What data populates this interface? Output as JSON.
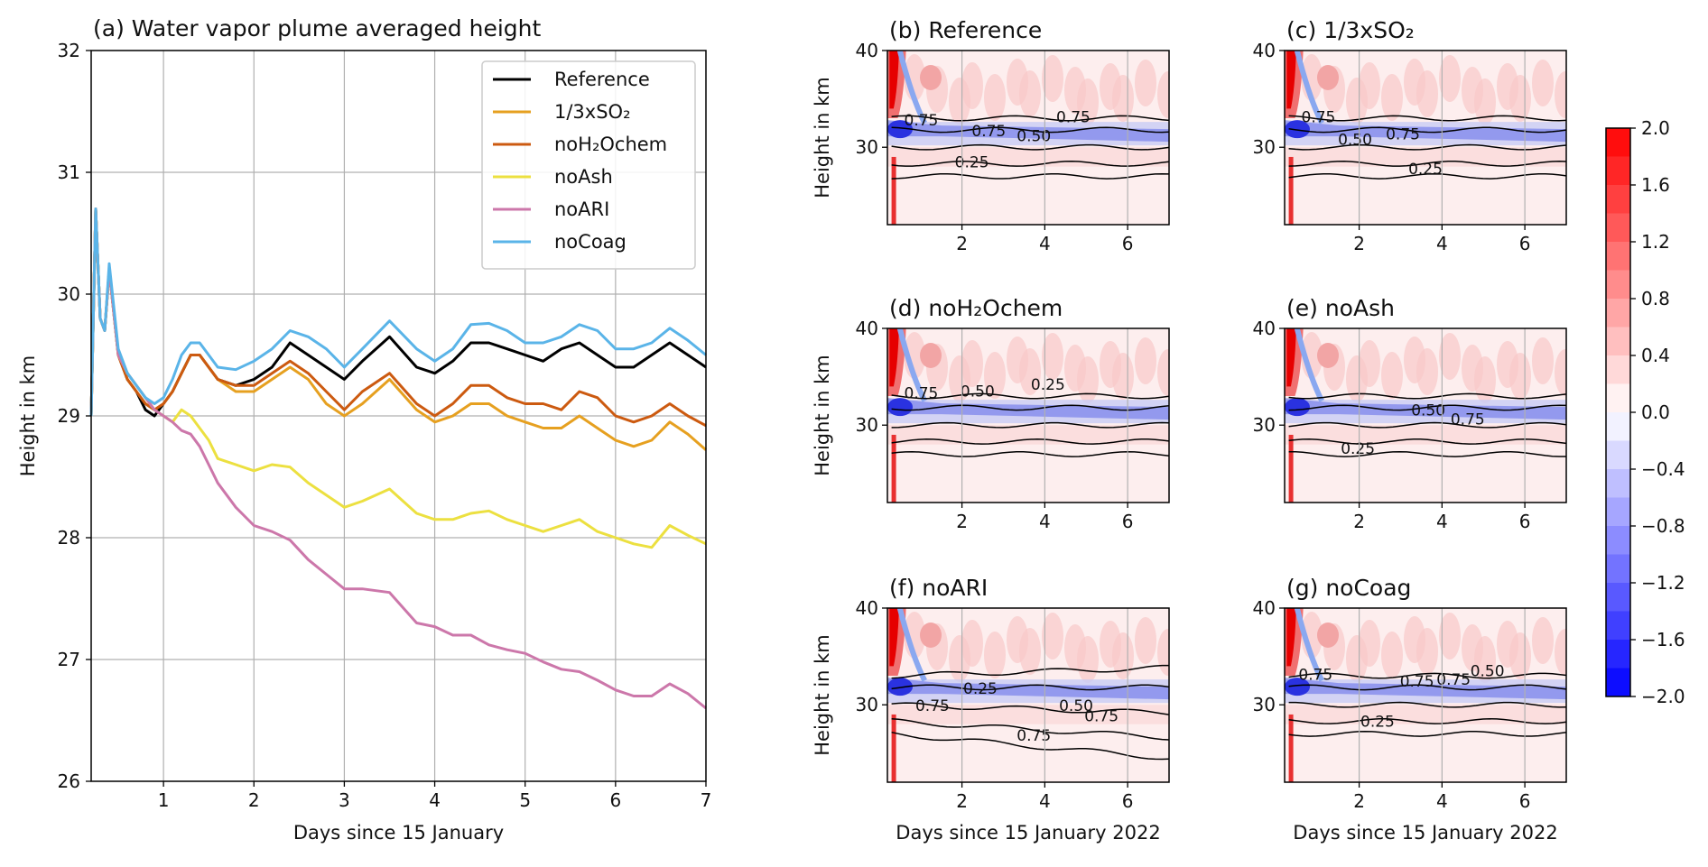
{
  "chart_data": [
    {
      "panel": "a",
      "type": "line",
      "title": "(a) Water vapor plume averaged height",
      "xlabel": "Days since 15 January",
      "ylabel": "Height in km",
      "xlim": [
        0.2,
        7
      ],
      "ylim": [
        26,
        32
      ],
      "xticks": [
        1,
        2,
        3,
        4,
        5,
        6,
        7
      ],
      "yticks": [
        26,
        27,
        28,
        29,
        30,
        31,
        32
      ],
      "grid": true,
      "legend_position": "top-right",
      "series": [
        {
          "name": "Reference",
          "legend_label": "Reference",
          "color": "#000000",
          "x": [
            0.2,
            0.25,
            0.3,
            0.35,
            0.4,
            0.5,
            0.6,
            0.7,
            0.8,
            0.9,
            1.0,
            1.1,
            1.2,
            1.3,
            1.4,
            1.5,
            1.6,
            1.8,
            2.0,
            2.2,
            2.4,
            2.6,
            2.8,
            3.0,
            3.2,
            3.5,
            3.8,
            4.0,
            4.2,
            4.4,
            4.6,
            4.8,
            5.0,
            5.2,
            5.4,
            5.6,
            5.8,
            6.0,
            6.2,
            6.4,
            6.6,
            6.8,
            7.0
          ],
          "y": [
            29.0,
            30.7,
            29.8,
            29.7,
            30.2,
            29.5,
            29.3,
            29.2,
            29.05,
            29.0,
            29.1,
            29.2,
            29.35,
            29.5,
            29.5,
            29.4,
            29.3,
            29.25,
            29.3,
            29.4,
            29.6,
            29.5,
            29.4,
            29.3,
            29.45,
            29.65,
            29.4,
            29.35,
            29.45,
            29.6,
            29.6,
            29.55,
            29.5,
            29.45,
            29.55,
            29.6,
            29.5,
            29.4,
            29.4,
            29.5,
            29.6,
            29.5,
            29.4
          ]
        },
        {
          "name": "1/3xSO2",
          "legend_label": "1/3xSO₂",
          "color": "#e6a020",
          "x": [
            0.2,
            0.25,
            0.3,
            0.35,
            0.4,
            0.5,
            0.6,
            0.7,
            0.8,
            0.9,
            1.0,
            1.1,
            1.2,
            1.3,
            1.4,
            1.5,
            1.6,
            1.8,
            2.0,
            2.2,
            2.4,
            2.6,
            2.8,
            3.0,
            3.2,
            3.5,
            3.8,
            4.0,
            4.2,
            4.4,
            4.6,
            4.8,
            5.0,
            5.2,
            5.4,
            5.6,
            5.8,
            6.0,
            6.2,
            6.4,
            6.6,
            6.8,
            7.0
          ],
          "y": [
            29.0,
            30.7,
            29.8,
            29.7,
            30.2,
            29.5,
            29.3,
            29.2,
            29.1,
            29.05,
            29.1,
            29.2,
            29.35,
            29.5,
            29.5,
            29.4,
            29.3,
            29.2,
            29.2,
            29.3,
            29.4,
            29.3,
            29.1,
            29.0,
            29.1,
            29.3,
            29.05,
            28.95,
            29.0,
            29.1,
            29.1,
            29.0,
            28.95,
            28.9,
            28.9,
            29.0,
            28.9,
            28.8,
            28.75,
            28.8,
            28.95,
            28.85,
            28.72
          ]
        },
        {
          "name": "noH2Ochem",
          "legend_label": "noH₂Ochem",
          "color": "#cc5a10",
          "x": [
            0.2,
            0.25,
            0.3,
            0.35,
            0.4,
            0.5,
            0.6,
            0.7,
            0.8,
            0.9,
            1.0,
            1.1,
            1.2,
            1.3,
            1.4,
            1.5,
            1.6,
            1.8,
            2.0,
            2.2,
            2.4,
            2.6,
            2.8,
            3.0,
            3.2,
            3.5,
            3.8,
            4.0,
            4.2,
            4.4,
            4.6,
            4.8,
            5.0,
            5.2,
            5.4,
            5.6,
            5.8,
            6.0,
            6.2,
            6.4,
            6.6,
            6.8,
            7.0
          ],
          "y": [
            29.0,
            30.7,
            29.8,
            29.7,
            30.2,
            29.5,
            29.3,
            29.2,
            29.1,
            29.05,
            29.1,
            29.2,
            29.35,
            29.5,
            29.5,
            29.4,
            29.3,
            29.25,
            29.25,
            29.35,
            29.45,
            29.35,
            29.2,
            29.05,
            29.2,
            29.35,
            29.1,
            29.0,
            29.1,
            29.25,
            29.25,
            29.15,
            29.1,
            29.1,
            29.05,
            29.2,
            29.15,
            29.0,
            28.95,
            29.0,
            29.1,
            29.0,
            28.92
          ]
        },
        {
          "name": "noAsh",
          "legend_label": "noAsh",
          "color": "#ece040",
          "x": [
            0.2,
            0.25,
            0.3,
            0.35,
            0.4,
            0.5,
            0.6,
            0.7,
            0.8,
            0.9,
            1.0,
            1.1,
            1.2,
            1.3,
            1.4,
            1.5,
            1.6,
            1.8,
            2.0,
            2.2,
            2.4,
            2.6,
            2.8,
            3.0,
            3.2,
            3.5,
            3.8,
            4.0,
            4.2,
            4.4,
            4.6,
            4.8,
            5.0,
            5.2,
            5.4,
            5.6,
            5.8,
            6.0,
            6.2,
            6.4,
            6.6,
            6.8,
            7.0
          ],
          "y": [
            29.0,
            30.7,
            29.8,
            29.7,
            30.2,
            29.5,
            29.35,
            29.25,
            29.15,
            29.05,
            29.0,
            28.95,
            29.05,
            29.0,
            28.9,
            28.8,
            28.65,
            28.6,
            28.55,
            28.6,
            28.58,
            28.45,
            28.35,
            28.25,
            28.3,
            28.4,
            28.2,
            28.15,
            28.15,
            28.2,
            28.22,
            28.15,
            28.1,
            28.05,
            28.1,
            28.15,
            28.05,
            28.0,
            27.95,
            27.92,
            28.1,
            28.02,
            27.95
          ]
        },
        {
          "name": "noARI",
          "legend_label": "noARI",
          "color": "#cc77aa",
          "x": [
            0.2,
            0.25,
            0.3,
            0.35,
            0.4,
            0.5,
            0.6,
            0.7,
            0.8,
            0.9,
            1.0,
            1.1,
            1.2,
            1.3,
            1.4,
            1.5,
            1.6,
            1.8,
            2.0,
            2.2,
            2.4,
            2.6,
            2.8,
            3.0,
            3.2,
            3.5,
            3.8,
            4.0,
            4.2,
            4.4,
            4.6,
            4.8,
            5.0,
            5.2,
            5.4,
            5.6,
            5.8,
            6.0,
            6.2,
            6.4,
            6.6,
            6.8,
            7.0
          ],
          "y": [
            29.0,
            30.7,
            29.8,
            29.7,
            30.2,
            29.5,
            29.35,
            29.25,
            29.15,
            29.05,
            29.0,
            28.95,
            28.88,
            28.85,
            28.75,
            28.6,
            28.45,
            28.25,
            28.1,
            28.05,
            27.98,
            27.82,
            27.7,
            27.58,
            27.58,
            27.55,
            27.3,
            27.27,
            27.2,
            27.2,
            27.12,
            27.08,
            27.05,
            26.98,
            26.92,
            26.9,
            26.83,
            26.75,
            26.7,
            26.7,
            26.8,
            26.72,
            26.6
          ]
        },
        {
          "name": "noCoag",
          "legend_label": "noCoag",
          "color": "#5ab4e8",
          "x": [
            0.2,
            0.25,
            0.3,
            0.35,
            0.4,
            0.5,
            0.6,
            0.7,
            0.8,
            0.9,
            1.0,
            1.1,
            1.2,
            1.3,
            1.4,
            1.5,
            1.6,
            1.8,
            2.0,
            2.2,
            2.4,
            2.6,
            2.8,
            3.0,
            3.2,
            3.5,
            3.8,
            4.0,
            4.2,
            4.4,
            4.6,
            4.8,
            5.0,
            5.2,
            5.4,
            5.6,
            5.8,
            6.0,
            6.2,
            6.4,
            6.6,
            6.8,
            7.0
          ],
          "y": [
            29.0,
            30.7,
            29.8,
            29.7,
            30.25,
            29.55,
            29.35,
            29.25,
            29.15,
            29.1,
            29.15,
            29.3,
            29.5,
            29.6,
            29.6,
            29.5,
            29.4,
            29.38,
            29.45,
            29.55,
            29.7,
            29.65,
            29.55,
            29.4,
            29.55,
            29.78,
            29.55,
            29.45,
            29.55,
            29.75,
            29.76,
            29.7,
            29.6,
            29.6,
            29.65,
            29.75,
            29.7,
            29.55,
            29.55,
            29.6,
            29.72,
            29.62,
            29.5
          ]
        }
      ]
    },
    {
      "panel": "b",
      "type": "heatmap",
      "title": "(b) Reference",
      "xlabel": "",
      "ylabel": "Height in km",
      "xticks": [
        2,
        4,
        6
      ],
      "yticks": [
        30,
        40
      ],
      "xlim": [
        0.2,
        7
      ],
      "ylim": [
        22,
        40
      ],
      "contour_labels": [
        "0.75",
        "0.75",
        "0.75",
        "0.50",
        "0.25"
      ]
    },
    {
      "panel": "c",
      "type": "heatmap",
      "title": "(c) 1/3xSO2",
      "title_display": "(c) 1/3xSO₂",
      "xlabel": "",
      "ylabel": "",
      "xticks": [
        2,
        4,
        6
      ],
      "yticks": [
        30,
        40
      ],
      "xlim": [
        0.2,
        7
      ],
      "ylim": [
        22,
        40
      ],
      "contour_labels": [
        "0.75",
        "0.50",
        "0.75",
        "0.25"
      ]
    },
    {
      "panel": "d",
      "type": "heatmap",
      "title": "(d) noH2Ochem",
      "title_display": "(d) noH₂Ochem",
      "xlabel": "",
      "ylabel": "Height in km",
      "xticks": [
        2,
        4,
        6
      ],
      "yticks": [
        30,
        40
      ],
      "xlim": [
        0.2,
        7
      ],
      "ylim": [
        22,
        40
      ],
      "contour_labels": [
        "0.75",
        "0.50",
        "0.25"
      ]
    },
    {
      "panel": "e",
      "type": "heatmap",
      "title": "(e) noAsh",
      "xlabel": "",
      "ylabel": "",
      "xticks": [
        2,
        4,
        6
      ],
      "yticks": [
        30,
        40
      ],
      "xlim": [
        0.2,
        7
      ],
      "ylim": [
        22,
        40
      ],
      "contour_labels": [
        "0.50",
        "0.75",
        "0.25"
      ]
    },
    {
      "panel": "f",
      "type": "heatmap",
      "title": "(f) noARI",
      "xlabel": "Days since 15 January 2022",
      "ylabel": "Height in km",
      "xticks": [
        2,
        4,
        6
      ],
      "yticks": [
        30,
        40
      ],
      "xlim": [
        0.2,
        7
      ],
      "ylim": [
        22,
        40
      ],
      "contour_labels": [
        "0.25",
        "0.75",
        "0.50",
        "0.75",
        "0.75"
      ]
    },
    {
      "panel": "g",
      "type": "heatmap",
      "title": "(g) noCoag",
      "xlabel": "Days since 15 January 2022",
      "ylabel": "",
      "xticks": [
        2,
        4,
        6
      ],
      "yticks": [
        30,
        40
      ],
      "xlim": [
        0.2,
        7
      ],
      "ylim": [
        22,
        40
      ],
      "contour_labels": [
        "0.75",
        "0.75",
        "0.75",
        "0.50",
        "0.25"
      ]
    }
  ],
  "colorbar": {
    "ticks": [
      "2.0",
      "1.6",
      "1.2",
      "0.8",
      "0.4",
      "0.0",
      "−0.4",
      "−0.8",
      "−1.2",
      "−1.6",
      "−2.0"
    ],
    "range": [
      -2.0,
      2.0
    ],
    "colormap": "bwr"
  }
}
